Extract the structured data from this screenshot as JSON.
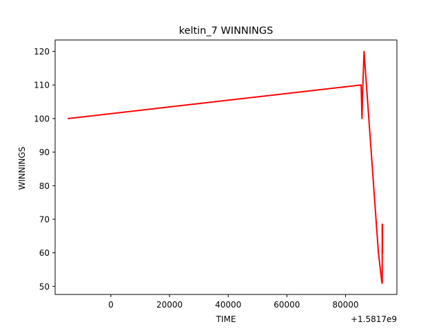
{
  "chart_data": {
    "type": "line",
    "title": "keltin_7 WINNINGS",
    "xlabel": "TIME",
    "ylabel": "WINNINGS",
    "x_offset_label": "+1.5817e9",
    "xlim": [
      -19000,
      97500
    ],
    "ylim": [
      47.6,
      123.4
    ],
    "x_ticks": [
      0,
      20000,
      40000,
      60000,
      80000
    ],
    "x_tick_labels": [
      "0",
      "20000",
      "40000",
      "60000",
      "80000"
    ],
    "y_ticks": [
      50,
      60,
      70,
      80,
      90,
      100,
      110,
      120
    ],
    "y_tick_labels": [
      "50",
      "60",
      "70",
      "80",
      "90",
      "100",
      "110",
      "120"
    ],
    "grid": false,
    "legend": "none",
    "series": [
      {
        "color": "#ff0000",
        "x": [
          -14500,
          85300,
          85600,
          85900,
          86300,
          91200,
          92400,
          92500,
          92500,
          92600,
          92600
        ],
        "y": [
          100,
          110,
          100,
          110,
          120,
          60,
          51,
          51,
          68.5,
          68.5,
          60
        ]
      }
    ]
  }
}
